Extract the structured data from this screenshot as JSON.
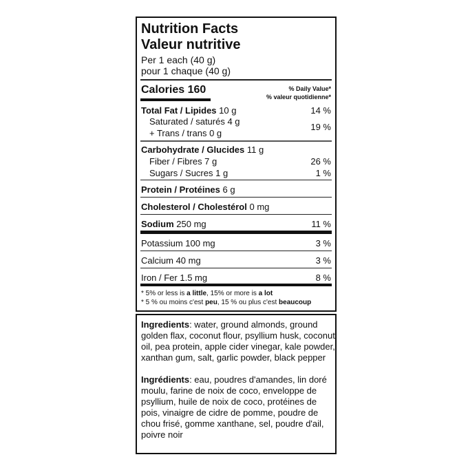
{
  "header": {
    "title_en": "Nutrition Facts",
    "title_fr": "Valeur nutritive",
    "serving_en": "Per 1 each (40 g)",
    "serving_fr": "pour 1 chaque (40 g)"
  },
  "calories": {
    "label": "Calories",
    "value": "160"
  },
  "daily_value": {
    "en": "% Daily Value*",
    "fr": "% valeur quotidienne*"
  },
  "nutrients": {
    "total_fat": {
      "label": "Total Fat / Lipides",
      "amount": "10 g",
      "dv": "14 %"
    },
    "saturated": {
      "label": "Saturated / saturés 4 g",
      "dv": "19 %"
    },
    "trans": {
      "label": "+ Trans / trans 0 g"
    },
    "carbohydrate": {
      "label": "Carbohydrate / Glucides",
      "amount": "11 g"
    },
    "fiber": {
      "label": "Fiber / Fibres 7 g",
      "dv": "26 %"
    },
    "sugars": {
      "label": "Sugars / Sucres 1 g",
      "dv": "1 %"
    },
    "protein": {
      "label": "Protein / Protéines",
      "amount": "6 g"
    },
    "cholesterol": {
      "label": "Cholesterol / Cholestérol",
      "amount": "0 mg"
    },
    "sodium": {
      "label": "Sodium",
      "amount": "250 mg",
      "dv": "11 %"
    },
    "potassium": {
      "label": "Potassium 100 mg",
      "dv": "3 %"
    },
    "calcium": {
      "label": "Calcium 40 mg",
      "dv": "3 %"
    },
    "iron": {
      "label": "Iron / Fer 1.5 mg",
      "dv": "8 %"
    }
  },
  "footnote": {
    "en_a": "* 5% or less is ",
    "en_b": "a little",
    "en_c": ", 15% or more is ",
    "en_d": "a lot",
    "fr_a": "* 5 % ou moins c'est ",
    "fr_b": "peu",
    "fr_c": ", 15 % ou plus c'est ",
    "fr_d": "beaucoup"
  },
  "ingredients": {
    "en_label": "Ingredients",
    "en_text": ": water, ground almonds, ground golden flax, coconut flour, psyllium husk, coconut oil, pea protein, apple cider vinegar, kale powder, xanthan gum, salt, garlic powder, black pepper",
    "fr_label": "Ingrédients",
    "fr_text": ": eau, poudres d'amandes, lin doré moulu, farine de noix de coco, enveloppe de psyllium, huile de noix de coco, protéines de pois, vinaigre de cidre de pomme, poudre de chou frisé, gomme xanthane, sel, poudre d'ail, poivre noir"
  }
}
